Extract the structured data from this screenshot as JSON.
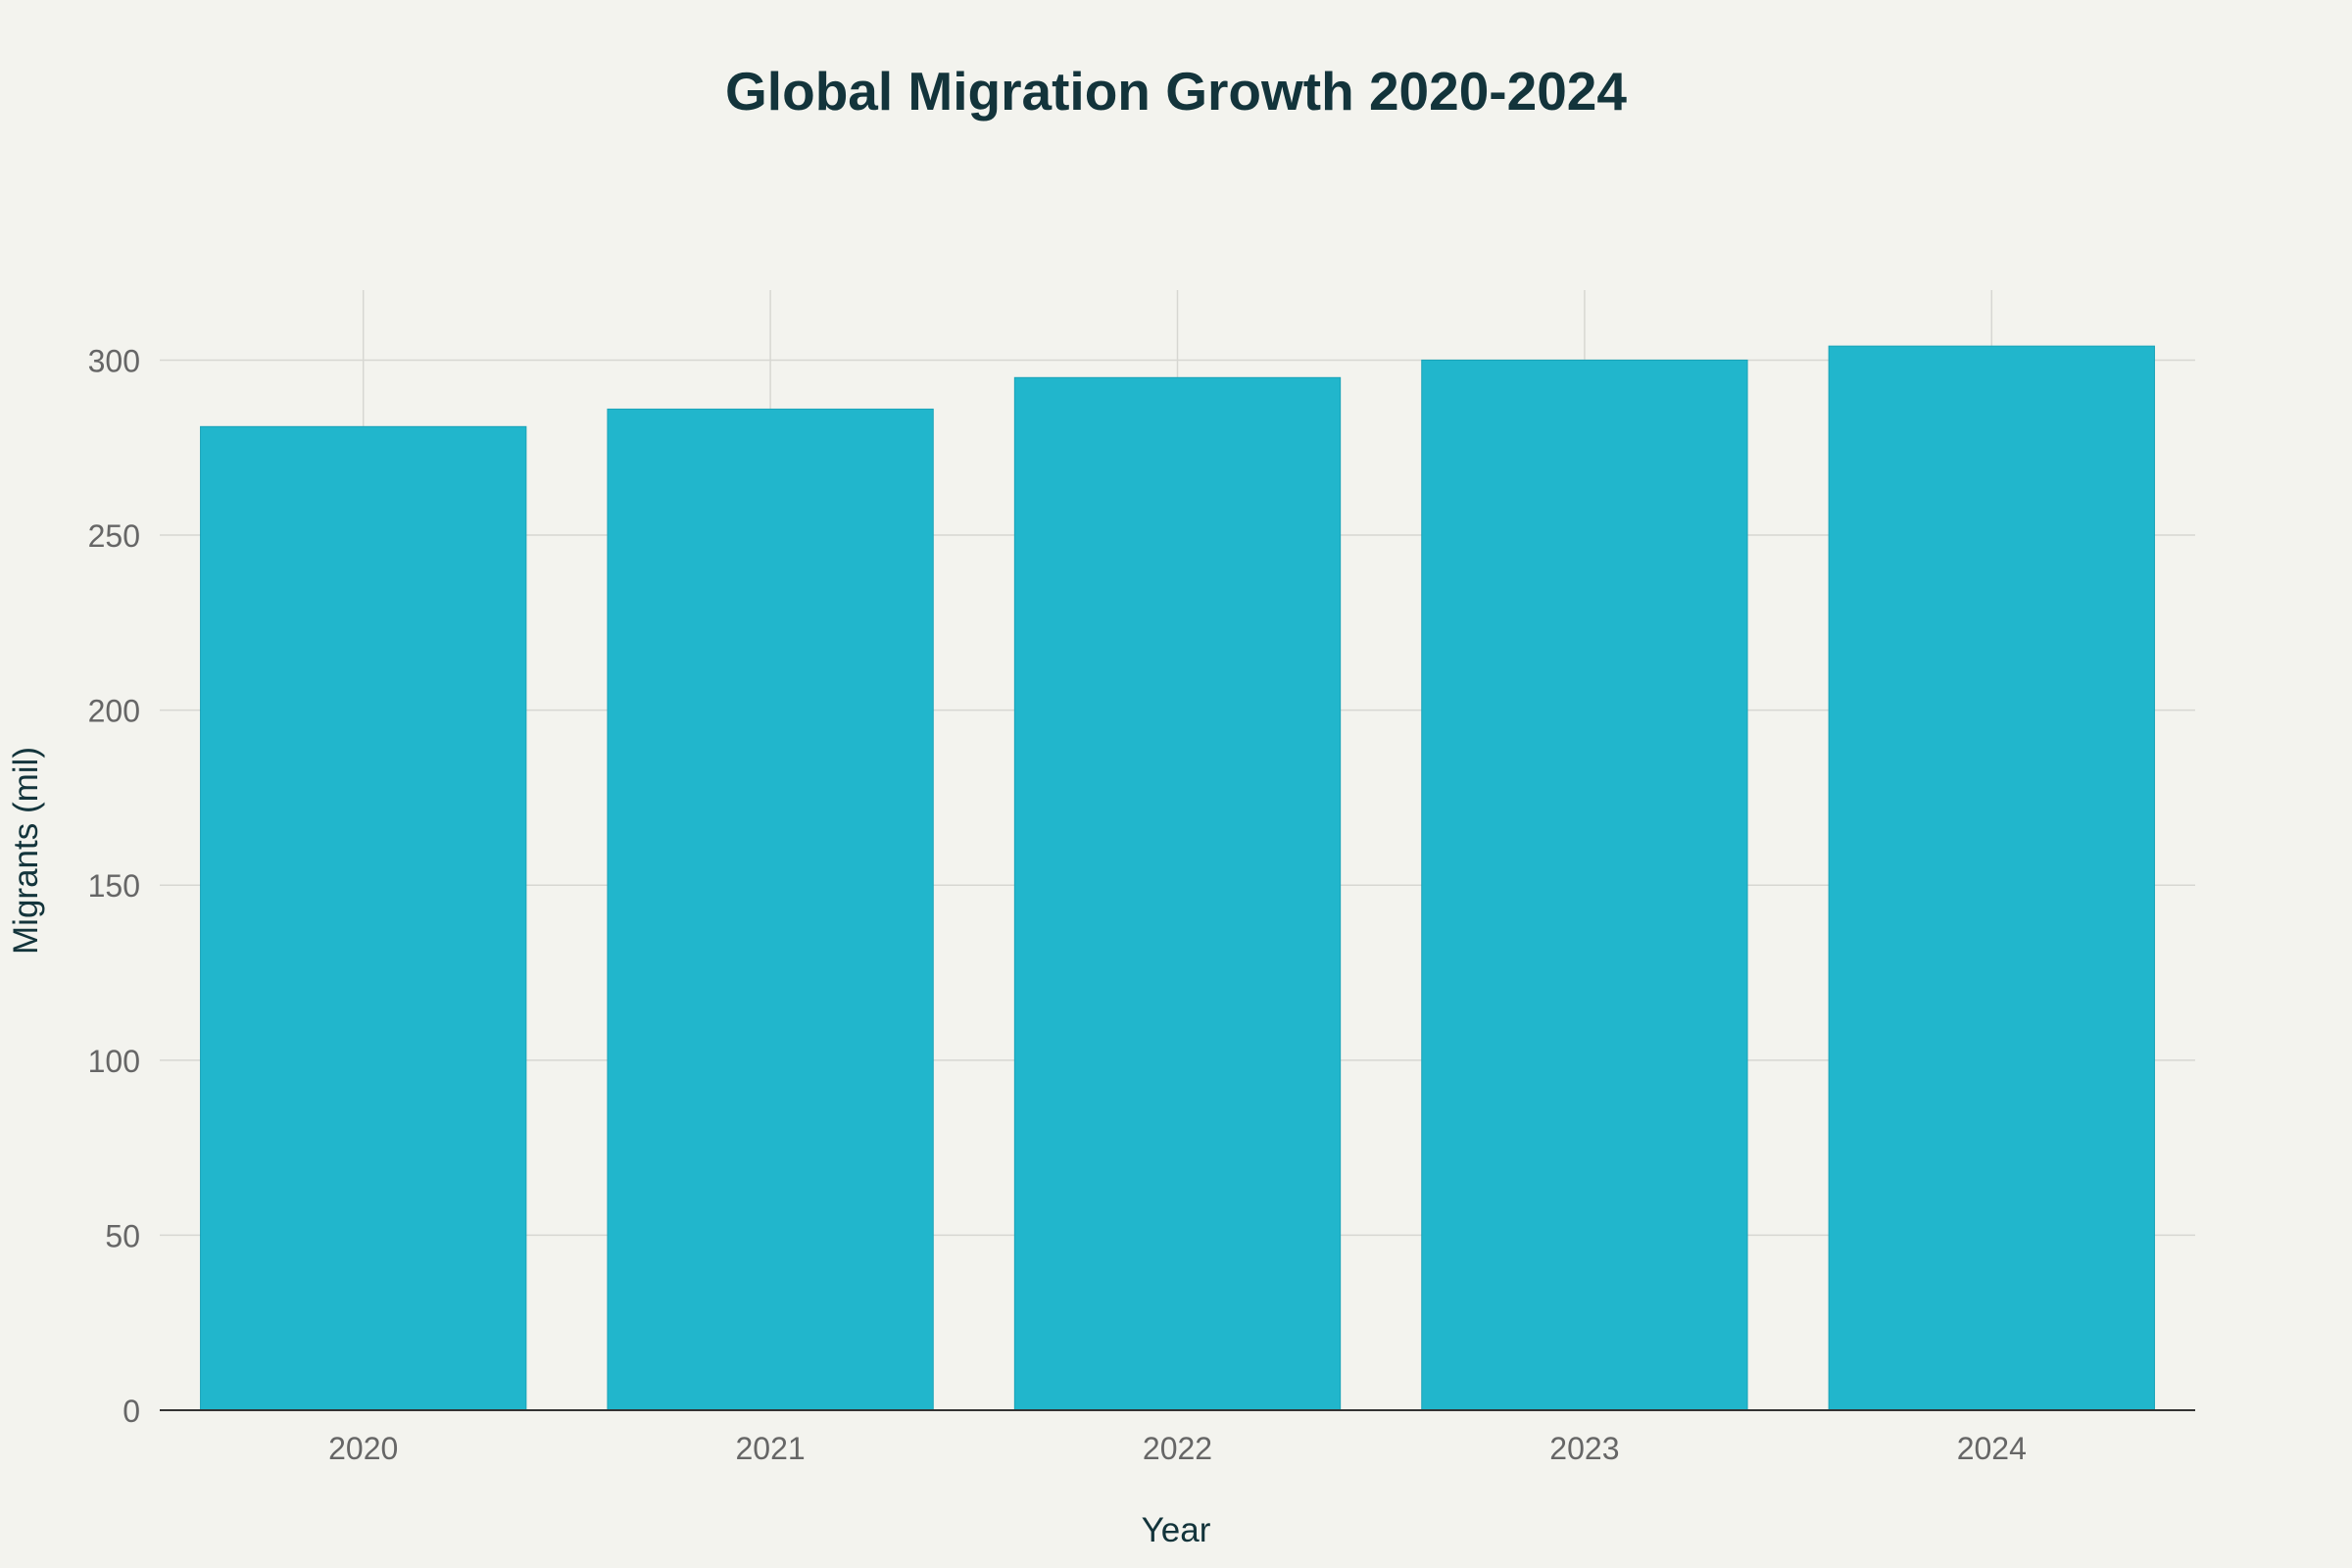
{
  "chart_data": {
    "type": "bar",
    "title": "Global Migration Growth 2020-2024",
    "xlabel": "Year",
    "ylabel": "Migrants (mil)",
    "categories": [
      "2020",
      "2021",
      "2022",
      "2023",
      "2024"
    ],
    "values": [
      281,
      286,
      295,
      300,
      304
    ],
    "ylim": [
      0,
      320
    ],
    "yticks": [
      0,
      50,
      100,
      150,
      200,
      250,
      300
    ],
    "grid": true,
    "legend": "none",
    "colors": {
      "bar": "#21b6cc",
      "grid": "#d7d7d2",
      "axis": "#333333",
      "title": "#13343b",
      "tick": "#666666",
      "background": "#f3f3ee"
    }
  }
}
